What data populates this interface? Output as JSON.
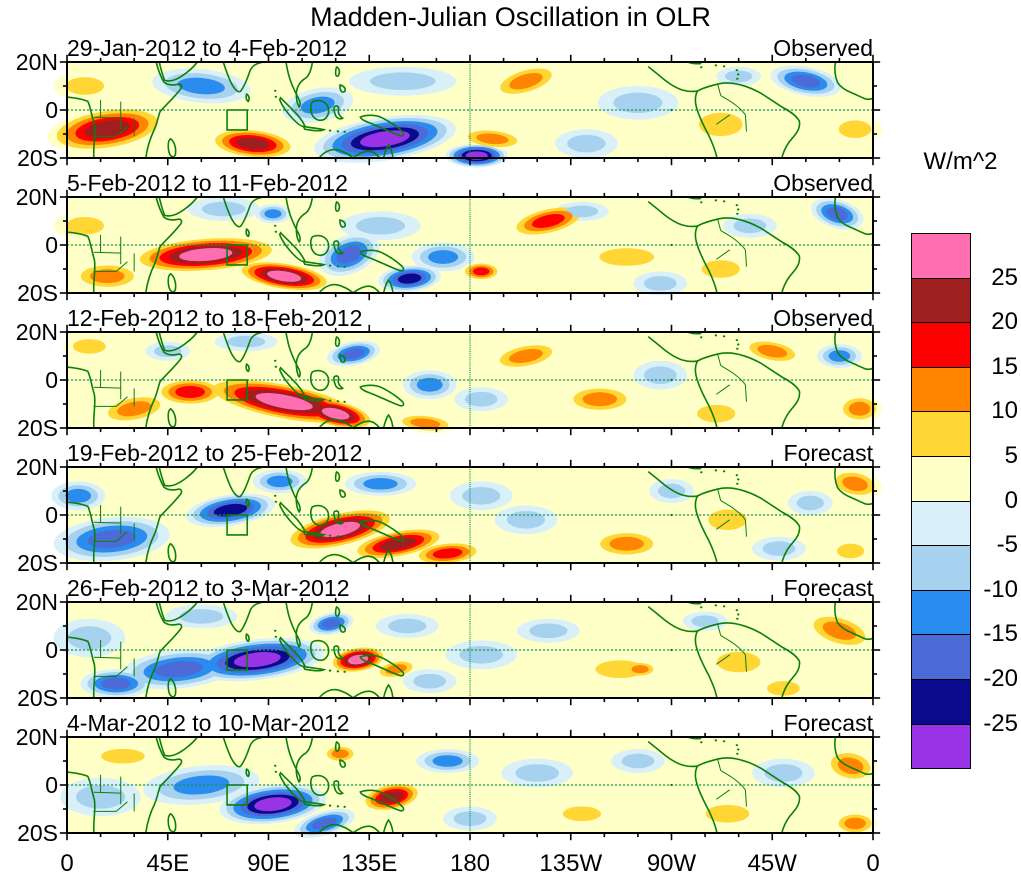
{
  "title": "Madden-Julian Oscillation in OLR",
  "colorbar": {
    "unit_label": "W/m^2",
    "tick_labels": [
      "25",
      "20",
      "15",
      "10",
      "5",
      "0",
      "-5",
      "-10",
      "-15",
      "-20",
      "-25"
    ],
    "colors_top_to_bottom": [
      "#FF6EB0",
      "#9E1F1F",
      "#FD0000",
      "#FF8400",
      "#FFD633",
      "#FFFFC8",
      "#D9F0F8",
      "#A6D2F0",
      "#2B8CEF",
      "#4C6BD8",
      "#0A0A8C",
      "#9933E6"
    ]
  },
  "x_axis": {
    "tick_labels": [
      "0",
      "45E",
      "90E",
      "135E",
      "180",
      "135W",
      "90W",
      "45W",
      "0"
    ]
  },
  "y_axis": {
    "tick_labels": [
      "20N",
      "0",
      "20S"
    ]
  },
  "colors": {
    "coastline_green": "#0B800B",
    "dashed_line_green": "#1E9455",
    "map_background": "#FFFFC8",
    "text": "#000000"
  },
  "chart_data": {
    "type": "heatmap",
    "subtype": "filled-contour longitude-latitude maps of OLR anomalies",
    "title": "Madden-Julian Oscillation in OLR",
    "units": "W/m^2",
    "contour_levels": [
      -25,
      -20,
      -15,
      -10,
      -5,
      0,
      5,
      10,
      15,
      20,
      25
    ],
    "lon_range": [
      0,
      360
    ],
    "lat_range": [
      -20,
      20
    ],
    "lon_tick_labels": [
      "0",
      "45E",
      "90E",
      "135E",
      "180",
      "135W",
      "90W",
      "45W",
      "0"
    ],
    "lat_tick_labels": [
      "20N",
      "0",
      "20S"
    ],
    "index_box": {
      "lon_min": 71.5,
      "lon_max": 80.5,
      "lat_min": -8.3,
      "lat_max": 0
    },
    "anomaly_format": "[lon_deg_east, lat_deg_north, radius_lon_deg, radius_lat_deg, peak_W_per_m2, rotation_deg]",
    "panels": [
      {
        "date_range": "29-Jan-2012 to 4-Feb-2012",
        "status": "Observed",
        "anomalies": [
          [
            18,
            -8,
            27,
            9,
            23,
            -8
          ],
          [
            8,
            10,
            14,
            6,
            7,
            0
          ],
          [
            83,
            -14,
            20,
            6.5,
            23,
            5
          ],
          [
            60,
            10,
            22,
            7,
            -13,
            5
          ],
          [
            112,
            2,
            16,
            7,
            -12,
            -10
          ],
          [
            142,
            -12,
            32,
            9,
            -28,
            -8
          ],
          [
            183,
            -19,
            14,
            5,
            -27,
            0
          ],
          [
            190,
            -12,
            15,
            4.5,
            13,
            5
          ],
          [
            150,
            12,
            24,
            6,
            -7,
            0
          ],
          [
            205,
            12,
            16,
            6,
            13,
            -15
          ],
          [
            232,
            -14,
            14,
            6,
            -9,
            0
          ],
          [
            255,
            3,
            18,
            7,
            -6,
            0
          ],
          [
            292,
            -6,
            16,
            8,
            8,
            0
          ],
          [
            300,
            14,
            10,
            4,
            -7,
            0
          ],
          [
            330,
            12,
            16,
            6,
            -18,
            10
          ],
          [
            352,
            -8,
            12,
            6,
            8,
            0
          ]
        ]
      },
      {
        "date_range": "5-Feb-2012 to 11-Feb-2012",
        "status": "Observed",
        "anomalies": [
          [
            62,
            -4,
            34,
            7.5,
            28,
            -4
          ],
          [
            97,
            -13,
            22,
            6,
            28,
            8
          ],
          [
            18,
            -13,
            16,
            6,
            13,
            0
          ],
          [
            8,
            8,
            14,
            6,
            6,
            0
          ],
          [
            70,
            15,
            16,
            5,
            -8,
            0
          ],
          [
            92,
            13,
            8,
            4,
            -13,
            0
          ],
          [
            126,
            -4,
            14,
            8,
            -17,
            -20
          ],
          [
            153,
            -14,
            14,
            5.5,
            -23,
            -5
          ],
          [
            140,
            8,
            18,
            6,
            -9,
            0
          ],
          [
            168,
            -5,
            14,
            6,
            -13,
            0
          ],
          [
            185,
            -11,
            9,
            4,
            17,
            0
          ],
          [
            215,
            10,
            18,
            6,
            17,
            -12
          ],
          [
            250,
            -5,
            20,
            6,
            8,
            0
          ],
          [
            292,
            -10,
            14,
            6,
            8,
            0
          ],
          [
            265,
            -16,
            12,
            5,
            -8,
            0
          ],
          [
            305,
            8,
            12,
            5,
            -7,
            0
          ],
          [
            344,
            13,
            12,
            6,
            -18,
            15
          ],
          [
            230,
            14,
            12,
            4,
            -7,
            0
          ]
        ]
      },
      {
        "date_range": "12-Feb-2012 to 18-Feb-2012",
        "status": "Observed",
        "anomalies": [
          [
            97,
            -9,
            37,
            8,
            28,
            10
          ],
          [
            120,
            -14,
            18,
            6,
            28,
            12
          ],
          [
            55,
            -5,
            16,
            6,
            17,
            0
          ],
          [
            30,
            -12,
            16,
            6,
            12,
            -10
          ],
          [
            160,
            -18,
            14,
            4,
            12,
            5
          ],
          [
            128,
            11,
            12,
            5,
            -17,
            -10
          ],
          [
            80,
            16,
            14,
            4,
            -8,
            0
          ],
          [
            45,
            12,
            10,
            4,
            -9,
            0
          ],
          [
            10,
            14,
            12,
            5,
            6,
            0
          ],
          [
            162,
            -2,
            12,
            6,
            -12,
            0
          ],
          [
            185,
            -8,
            12,
            5,
            -7,
            0
          ],
          [
            205,
            10,
            16,
            5.5,
            13,
            -10
          ],
          [
            238,
            -8,
            16,
            6,
            12,
            0
          ],
          [
            265,
            2,
            12,
            6,
            -8,
            0
          ],
          [
            290,
            -14,
            14,
            6,
            7,
            0
          ],
          [
            315,
            12,
            14,
            5,
            12,
            10
          ],
          [
            345,
            10,
            10,
            5,
            -12,
            0
          ],
          [
            354,
            -12,
            10,
            6,
            13,
            0
          ]
        ]
      },
      {
        "date_range": "19-Feb-2012 to 25-Feb-2012",
        "status": "Forecast",
        "anomalies": [
          [
            20,
            -10,
            26,
            9,
            -17,
            -5
          ],
          [
            5,
            8,
            12,
            6,
            -12,
            0
          ],
          [
            73,
            2,
            20,
            6.5,
            -23,
            -8
          ],
          [
            95,
            14,
            12,
            5,
            -12,
            0
          ],
          [
            122,
            -6,
            26,
            7.5,
            28,
            -12
          ],
          [
            148,
            -12,
            22,
            6,
            24,
            -10
          ],
          [
            170,
            -16,
            16,
            5,
            16,
            -5
          ],
          [
            140,
            13,
            16,
            5,
            -13,
            0
          ],
          [
            185,
            8,
            14,
            6,
            -9,
            0
          ],
          [
            205,
            -2,
            14,
            6,
            -7,
            0
          ],
          [
            250,
            -12,
            16,
            6,
            14,
            0
          ],
          [
            270,
            10,
            10,
            5,
            -8,
            0
          ],
          [
            295,
            -2,
            14,
            7,
            6,
            0
          ],
          [
            318,
            -14,
            12,
            5,
            -8,
            0
          ],
          [
            332,
            5,
            10,
            5,
            -7,
            0
          ],
          [
            352,
            13,
            12,
            6,
            14,
            10
          ],
          [
            350,
            -15,
            10,
            5,
            7,
            0
          ]
        ]
      },
      {
        "date_range": "26-Feb-2012 to 3-Mar-2012",
        "status": "Forecast",
        "anomalies": [
          [
            85,
            -4,
            30,
            8.5,
            -27,
            -6
          ],
          [
            50,
            -8,
            26,
            8,
            -17,
            -5
          ],
          [
            22,
            -14,
            16,
            6,
            -18,
            0
          ],
          [
            10,
            5,
            16,
            8,
            -8,
            0
          ],
          [
            60,
            14,
            16,
            5,
            -9,
            0
          ],
          [
            130,
            -4,
            13,
            5.5,
            27,
            -8
          ],
          [
            147,
            -8,
            10,
            4,
            13,
            -10
          ],
          [
            118,
            11,
            10,
            4.5,
            -18,
            -10
          ],
          [
            152,
            10,
            14,
            5,
            -9,
            0
          ],
          [
            162,
            -13,
            12,
            5,
            -8,
            0
          ],
          [
            185,
            -2,
            16,
            6,
            -6,
            0
          ],
          [
            215,
            8,
            14,
            5,
            -7,
            0
          ],
          [
            247,
            -8,
            18,
            6,
            9,
            0
          ],
          [
            256,
            -8,
            8,
            3.5,
            12,
            0
          ],
          [
            285,
            12,
            10,
            4,
            -8,
            0
          ],
          [
            300,
            -5,
            16,
            7,
            7,
            0
          ],
          [
            345,
            8,
            16,
            7,
            14,
            15
          ],
          [
            320,
            -16,
            12,
            5,
            7,
            0
          ]
        ]
      },
      {
        "date_range": "4-Mar-2012 to 10-Mar-2012",
        "status": "Forecast",
        "anomalies": [
          [
            92,
            -8,
            24,
            8,
            -29,
            -6
          ],
          [
            60,
            0,
            26,
            8,
            -13,
            -5
          ],
          [
            115,
            -16,
            14,
            5,
            -17,
            -15
          ],
          [
            15,
            -5,
            18,
            8,
            -7,
            0
          ],
          [
            25,
            12,
            16,
            5,
            6,
            0
          ],
          [
            122,
            13,
            8,
            4,
            12,
            0
          ],
          [
            145,
            -5,
            14,
            6,
            22,
            -10
          ],
          [
            170,
            10,
            14,
            5,
            -12,
            0
          ],
          [
            180,
            -14,
            12,
            5,
            -7,
            0
          ],
          [
            210,
            5,
            16,
            6,
            -7,
            0
          ],
          [
            230,
            -12,
            14,
            5,
            7,
            0
          ],
          [
            255,
            10,
            12,
            5,
            -8,
            0
          ],
          [
            295,
            -12,
            16,
            6,
            7,
            0
          ],
          [
            320,
            5,
            14,
            6,
            -7,
            0
          ],
          [
            350,
            8,
            12,
            7,
            14,
            10
          ],
          [
            352,
            -16,
            10,
            5,
            13,
            0
          ]
        ]
      }
    ]
  }
}
